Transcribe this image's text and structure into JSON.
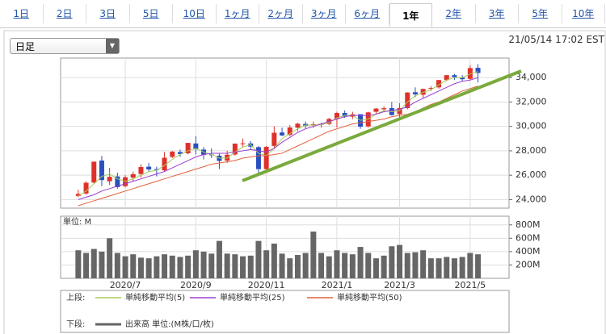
{
  "tabs": [
    "1日",
    "2日",
    "3日",
    "5日",
    "10日",
    "1ヶ月",
    "2ヶ月",
    "3ヶ月",
    "6ヶ月",
    "1年",
    "2年",
    "3年",
    "5年",
    "10年"
  ],
  "dropdown": "日足",
  "timestamp": "21/05/14 17:02 EST",
  "chart_data": [
    {
      "type": "candlestick",
      "legend_title": "上段:",
      "up_color": "#e0302a",
      "down_color": "#2a4fc0",
      "open": [
        24300,
        24500,
        25400,
        27200,
        25500,
        25900,
        25100,
        25800,
        26100,
        26700,
        26500,
        26400,
        27500,
        27900,
        27800,
        28600,
        28100,
        27700,
        27600,
        27200,
        27700,
        28600,
        28600,
        28300,
        26500,
        28400,
        29500,
        29300,
        29900,
        30200,
        30100,
        30200,
        30200,
        30600,
        31100,
        30800,
        31000,
        30000,
        31200,
        31400,
        31500,
        31000,
        31500,
        32800,
        32600,
        33100,
        33200,
        33800,
        34200,
        34000,
        33900,
        34800
      ],
      "high": [
        24800,
        25500,
        27100,
        27580,
        26600,
        26200,
        26000,
        26300,
        26900,
        27000,
        26700,
        27900,
        28000,
        28100,
        28600,
        29200,
        28300,
        28200,
        27800,
        28000,
        28600,
        29000,
        28800,
        28400,
        28400,
        30000,
        29900,
        30100,
        30300,
        30400,
        30400,
        30300,
        30700,
        31200,
        31300,
        31200,
        31000,
        31200,
        31500,
        31650,
        32000,
        31900,
        32800,
        33200,
        33100,
        33300,
        33800,
        34200,
        34300,
        34200,
        35000,
        35100
      ],
      "low": [
        24200,
        24400,
        25300,
        25100,
        25200,
        24900,
        25000,
        25500,
        25800,
        26300,
        25900,
        26300,
        27400,
        27500,
        27700,
        27700,
        27300,
        27400,
        26500,
        27000,
        27600,
        28300,
        28100,
        26100,
        26300,
        28200,
        29200,
        29200,
        29600,
        29800,
        29900,
        29900,
        30100,
        29900,
        30700,
        30600,
        29800,
        29900,
        31000,
        31200,
        30900,
        30500,
        31400,
        32400,
        32300,
        32900,
        33100,
        33700,
        33800,
        33700,
        33800,
        33600
      ],
      "close": [
        24470,
        25380,
        27110,
        25600,
        25870,
        25020,
        25830,
        26080,
        26670,
        26470,
        26430,
        27430,
        27930,
        27740,
        28650,
        28130,
        27670,
        27660,
        27170,
        27680,
        28590,
        28610,
        28340,
        26500,
        28320,
        29480,
        29260,
        29910,
        30220,
        30050,
        30180,
        30200,
        30610,
        31100,
        30810,
        30990,
        29980,
        31150,
        31460,
        31490,
        30930,
        31500,
        32780,
        32630,
        33070,
        33150,
        33800,
        34200,
        34040,
        33870,
        34780,
        34380
      ],
      "series": [
        {
          "name": "単純移動平均(5)",
          "color": "#a8cc5a",
          "values": [
            24300,
            24700,
            25300,
            25900,
            26100,
            25700,
            25500,
            25700,
            26000,
            26300,
            26400,
            26800,
            27300,
            27700,
            28000,
            28200,
            27900,
            27700,
            27400,
            27400,
            27900,
            28300,
            28500,
            27800,
            27600,
            28200,
            29000,
            29400,
            29800,
            30100,
            30100,
            30150,
            30300,
            30700,
            30900,
            30900,
            30500,
            30600,
            31000,
            31300,
            31200,
            31300,
            32000,
            32500,
            32800,
            33000,
            33400,
            33800,
            34000,
            34000,
            34300,
            34500
          ]
        },
        {
          "name": "単純移動平均(25)",
          "color": "#9b3fd0",
          "values": [
            24000,
            24200,
            24400,
            24700,
            24900,
            25100,
            25300,
            25500,
            25700,
            25900,
            26100,
            26300,
            26600,
            26900,
            27200,
            27500,
            27700,
            27800,
            27800,
            27800,
            27900,
            28000,
            28100,
            28000,
            27900,
            28200,
            28700,
            29100,
            29500,
            29800,
            30000,
            30200,
            30400,
            30600,
            30800,
            30900,
            30900,
            30900,
            31000,
            31200,
            31300,
            31400,
            31600,
            32000,
            32300,
            32600,
            32900,
            33200,
            33500,
            33700,
            33800,
            34000
          ]
        },
        {
          "name": "単純移動平均(50)",
          "color": "#e0603a",
          "values": [
            23500,
            23700,
            23900,
            24100,
            24300,
            24500,
            24700,
            24900,
            25100,
            25300,
            25500,
            25700,
            25900,
            26100,
            26300,
            26500,
            26700,
            26900,
            27000,
            27100,
            27200,
            27400,
            27500,
            27600,
            27600,
            27700,
            27800,
            28100,
            28400,
            28700,
            29000,
            29300,
            29600,
            29800,
            30000,
            30200,
            30300,
            30400,
            30500,
            30600,
            30800,
            30900,
            31000,
            31200,
            31500,
            31800,
            32000,
            32300,
            32600,
            32900,
            33100,
            33300
          ]
        }
      ],
      "ylim": [
        23300,
        35600
      ],
      "yticks": [
        {
          "value": 24000,
          "label": "24,000"
        },
        {
          "value": 26000,
          "label": "26,000"
        },
        {
          "value": 28000,
          "label": "28,000"
        },
        {
          "value": 30000,
          "label": "30,000"
        },
        {
          "value": 32000,
          "label": "32,000"
        },
        {
          "value": 34000,
          "label": "34,000"
        }
      ],
      "grid": true
    },
    {
      "type": "bar",
      "title": "単位: M",
      "legend_title": "下段:",
      "categories": [
        null,
        null,
        null,
        null,
        null,
        null,
        "2020/7",
        null,
        null,
        null,
        null,
        null,
        null,
        null,
        null,
        "2020/9",
        null,
        null,
        null,
        null,
        null,
        null,
        null,
        null,
        "2020/11",
        null,
        null,
        null,
        null,
        null,
        null,
        null,
        null,
        "2021/1",
        null,
        null,
        null,
        null,
        null,
        null,
        null,
        "2021/3",
        null,
        null,
        null,
        null,
        null,
        null,
        null,
        null,
        "2021/5",
        null
      ],
      "series": [
        {
          "name": "出来高 単位:(M株/口/枚)",
          "color": "#666666",
          "values": [
            420,
            380,
            440,
            400,
            600,
            380,
            330,
            360,
            310,
            300,
            330,
            360,
            340,
            320,
            340,
            420,
            400,
            370,
            560,
            370,
            360,
            330,
            340,
            560,
            420,
            520,
            370,
            300,
            350,
            380,
            700,
            380,
            330,
            420,
            380,
            360,
            470,
            380,
            300,
            340,
            480,
            500,
            380,
            390,
            420,
            300,
            300,
            320,
            300,
            320,
            380,
            360
          ]
        }
      ],
      "ylim": [
        0,
        930
      ],
      "yticks": [
        {
          "value": 200,
          "label": "200M"
        },
        {
          "value": 400,
          "label": "400M"
        },
        {
          "value": 600,
          "label": "600M"
        },
        {
          "value": 800,
          "label": "800M"
        }
      ],
      "grid": true
    }
  ]
}
